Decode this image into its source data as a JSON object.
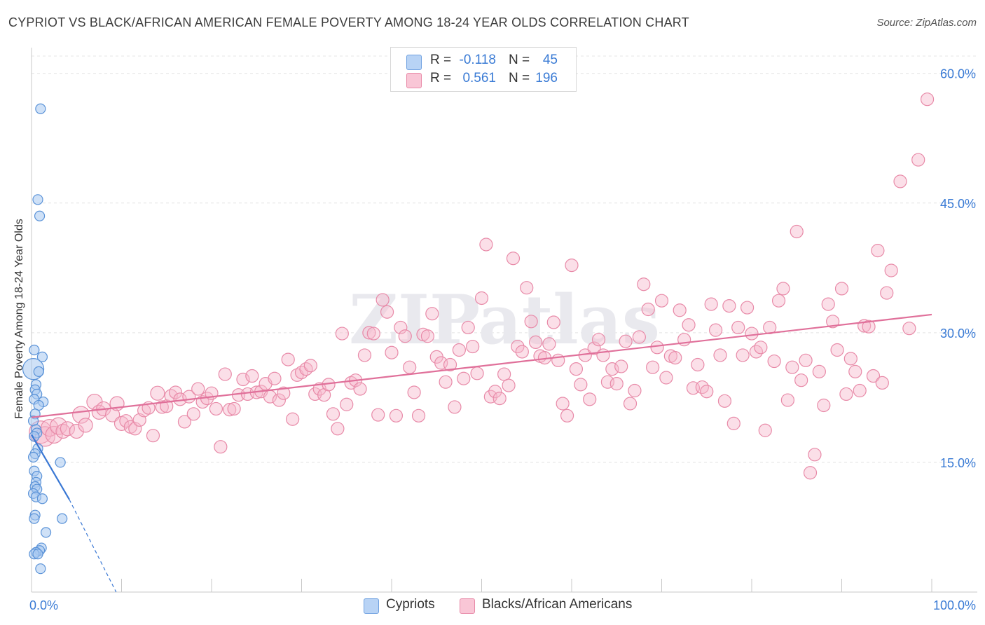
{
  "header": {
    "title": "CYPRIOT VS BLACK/AFRICAN AMERICAN FEMALE POVERTY AMONG 18-24 YEAR OLDS CORRELATION CHART",
    "source": "Source: ZipAtlas.com"
  },
  "legend_top": {
    "rows": [
      {
        "r_label": "R =",
        "r_value": "-0.118",
        "n_label": "N =",
        "n_value": "45"
      },
      {
        "r_label": "R =",
        "r_value": "0.561",
        "n_label": "N =",
        "n_value": "196"
      }
    ]
  },
  "legend_bottom": {
    "items": [
      {
        "label": "Cypriots"
      },
      {
        "label": "Blacks/African Americans"
      }
    ]
  },
  "watermark": "ZIPatlas",
  "colors": {
    "blue_fill": "#a8c8f0",
    "blue_stroke": "#5b93d8",
    "blue_line": "#3a78d4",
    "pink_fill": "#f7b8cc",
    "pink_stroke": "#e88aa8",
    "pink_line": "#e0709a",
    "grid": "#e4e4e4",
    "tick_label": "#3a7bd5"
  },
  "chart_data": {
    "type": "scatter",
    "title": "CYPRIOT VS BLACK/AFRICAN AMERICAN FEMALE POVERTY AMONG 18-24 YEAR OLDS CORRELATION CHART",
    "xlabel": "",
    "ylabel": "Female Poverty Among 18-24 Year Olds",
    "xlim": [
      0,
      100
    ],
    "ylim": [
      0,
      62
    ],
    "x_tick_labels": [
      "0.0%",
      "100.0%"
    ],
    "y_ticks": [
      15,
      30,
      45,
      60
    ],
    "y_tick_labels": [
      "15.0%",
      "30.0%",
      "45.0%",
      "60.0%"
    ],
    "grid": true,
    "series": [
      {
        "name": "Cypriots",
        "r": -0.118,
        "n": 45,
        "trend": {
          "x0": 0,
          "y0": 18.2,
          "x1": 4.2,
          "y1": 10.7
        },
        "trend_dashed": {
          "x0": 4.2,
          "y0": 10.7,
          "x1": 9.4,
          "y1": 0
        },
        "points": [
          [
            1.0,
            55.9,
            7
          ],
          [
            0.7,
            45.4,
            7
          ],
          [
            0.9,
            43.5,
            7
          ],
          [
            0.3,
            28.0,
            7
          ],
          [
            1.2,
            27.2,
            7
          ],
          [
            0.2,
            25.8,
            15
          ],
          [
            0.8,
            25.5,
            7
          ],
          [
            0.5,
            24.0,
            7
          ],
          [
            0.4,
            23.4,
            7
          ],
          [
            0.6,
            22.9,
            7
          ],
          [
            0.3,
            22.3,
            7
          ],
          [
            1.3,
            22.0,
            7
          ],
          [
            0.8,
            21.6,
            7
          ],
          [
            0.4,
            20.6,
            7
          ],
          [
            0.2,
            19.8,
            7
          ],
          [
            0.5,
            18.8,
            7
          ],
          [
            0.6,
            18.4,
            7
          ],
          [
            0.3,
            18.0,
            7
          ],
          [
            0.7,
            16.6,
            7
          ],
          [
            0.4,
            16.0,
            7
          ],
          [
            0.2,
            15.6,
            7
          ],
          [
            3.2,
            15.0,
            7
          ],
          [
            0.3,
            14.0,
            7
          ],
          [
            0.6,
            13.4,
            7
          ],
          [
            0.5,
            12.7,
            7
          ],
          [
            0.4,
            12.2,
            7
          ],
          [
            0.6,
            11.9,
            7
          ],
          [
            0.2,
            11.4,
            7
          ],
          [
            0.5,
            11.0,
            7
          ],
          [
            1.2,
            10.8,
            7
          ],
          [
            0.4,
            8.9,
            7
          ],
          [
            0.3,
            8.5,
            7
          ],
          [
            3.4,
            8.5,
            7
          ],
          [
            1.6,
            6.9,
            7
          ],
          [
            1.1,
            5.1,
            7
          ],
          [
            0.9,
            4.8,
            7
          ],
          [
            0.5,
            4.6,
            7
          ],
          [
            0.3,
            4.4,
            7
          ],
          [
            0.7,
            4.4,
            7
          ],
          [
            1.0,
            2.7,
            7
          ]
        ]
      },
      {
        "name": "Blacks/African Americans",
        "r": 0.561,
        "n": 196,
        "trend": {
          "x0": 0,
          "y0": 20.2,
          "x1": 100,
          "y1": 32.1
        },
        "points": [
          [
            1.0,
            18.5,
            16
          ],
          [
            1.5,
            18.0,
            14
          ],
          [
            2.0,
            19.0,
            12
          ],
          [
            2.5,
            18.2,
            12
          ],
          [
            3.0,
            19.2,
            12
          ],
          [
            3.5,
            18.6,
            10
          ],
          [
            4.0,
            18.9,
            10
          ],
          [
            5.0,
            18.6,
            10
          ],
          [
            5.5,
            20.5,
            12
          ],
          [
            6.0,
            19.3,
            10
          ],
          [
            7.0,
            22.0,
            11
          ],
          [
            7.5,
            20.8,
            10
          ],
          [
            8.0,
            21.2,
            10
          ],
          [
            9.0,
            20.5,
            10
          ],
          [
            9.5,
            21.8,
            10
          ],
          [
            10.0,
            19.5,
            10
          ],
          [
            10.5,
            19.8,
            9
          ],
          [
            11.0,
            19.1,
            9
          ],
          [
            11.5,
            18.9,
            9
          ],
          [
            12.0,
            19.9,
            9
          ],
          [
            12.5,
            21.0,
            9
          ],
          [
            13.0,
            21.3,
            9
          ],
          [
            13.5,
            18.1,
            9
          ],
          [
            14.0,
            23.0,
            10
          ],
          [
            14.5,
            21.4,
            9
          ],
          [
            15.0,
            21.5,
            9
          ],
          [
            15.5,
            22.7,
            9
          ],
          [
            16.0,
            23.1,
            9
          ],
          [
            16.5,
            22.3,
            9
          ],
          [
            17.0,
            19.7,
            9
          ],
          [
            17.5,
            22.6,
            9
          ],
          [
            18.0,
            20.6,
            9
          ],
          [
            18.5,
            23.5,
            9
          ],
          [
            19.0,
            22.0,
            9
          ],
          [
            19.5,
            22.4,
            9
          ],
          [
            20.0,
            23.0,
            9
          ],
          [
            20.5,
            21.2,
            9
          ],
          [
            21.0,
            16.8,
            9
          ],
          [
            21.5,
            25.2,
            9
          ],
          [
            22.0,
            21.1,
            9
          ],
          [
            22.5,
            21.2,
            9
          ],
          [
            23.0,
            22.8,
            9
          ],
          [
            23.5,
            24.6,
            9
          ],
          [
            24.0,
            22.9,
            9
          ],
          [
            24.5,
            25.0,
            9
          ],
          [
            25.0,
            23.1,
            9
          ],
          [
            25.5,
            23.2,
            9
          ],
          [
            26.0,
            24.1,
            9
          ],
          [
            26.5,
            22.6,
            9
          ],
          [
            27.0,
            24.7,
            9
          ],
          [
            27.5,
            22.2,
            9
          ],
          [
            28.0,
            23.0,
            9
          ],
          [
            28.5,
            26.9,
            9
          ],
          [
            29.0,
            20.0,
            9
          ],
          [
            29.5,
            25.1,
            9
          ],
          [
            30.0,
            25.4,
            9
          ],
          [
            30.5,
            25.8,
            9
          ],
          [
            31.0,
            26.2,
            9
          ],
          [
            31.5,
            22.9,
            9
          ],
          [
            32.0,
            23.5,
            9
          ],
          [
            32.5,
            22.8,
            9
          ],
          [
            33.0,
            24.0,
            9
          ],
          [
            33.5,
            20.6,
            9
          ],
          [
            34.0,
            18.9,
            9
          ],
          [
            34.5,
            29.9,
            9
          ],
          [
            35.0,
            21.7,
            9
          ],
          [
            35.5,
            24.2,
            9
          ],
          [
            36.0,
            24.5,
            9
          ],
          [
            36.5,
            23.5,
            9
          ],
          [
            37.0,
            27.4,
            9
          ],
          [
            37.5,
            30.0,
            9
          ],
          [
            38.0,
            29.9,
            9
          ],
          [
            38.5,
            20.5,
            9
          ],
          [
            39.0,
            33.8,
            9
          ],
          [
            39.5,
            32.4,
            9
          ],
          [
            40.0,
            27.7,
            9
          ],
          [
            40.5,
            20.4,
            9
          ],
          [
            41.0,
            30.6,
            9
          ],
          [
            41.5,
            29.6,
            9
          ],
          [
            42.0,
            26.0,
            9
          ],
          [
            42.5,
            23.1,
            9
          ],
          [
            43.0,
            20.4,
            9
          ],
          [
            43.5,
            29.8,
            9
          ],
          [
            44.0,
            29.6,
            9
          ],
          [
            44.5,
            32.2,
            9
          ],
          [
            45.0,
            27.2,
            9
          ],
          [
            45.5,
            26.5,
            9
          ],
          [
            46.0,
            24.3,
            9
          ],
          [
            46.5,
            26.3,
            9
          ],
          [
            47.0,
            21.4,
            9
          ],
          [
            47.5,
            28.0,
            9
          ],
          [
            48.0,
            24.7,
            9
          ],
          [
            48.5,
            30.6,
            9
          ],
          [
            49.0,
            28.4,
            9
          ],
          [
            49.5,
            25.3,
            9
          ],
          [
            50.0,
            34.0,
            9
          ],
          [
            50.5,
            40.2,
            9
          ],
          [
            51.0,
            22.6,
            9
          ],
          [
            51.5,
            23.2,
            9
          ],
          [
            52.0,
            22.4,
            9
          ],
          [
            52.5,
            25.2,
            9
          ],
          [
            53.0,
            23.9,
            9
          ],
          [
            53.5,
            38.6,
            9
          ],
          [
            54.0,
            28.4,
            9
          ],
          [
            54.5,
            27.8,
            9
          ],
          [
            55.0,
            35.2,
            9
          ],
          [
            55.5,
            31.3,
            9
          ],
          [
            56.0,
            28.9,
            9
          ],
          [
            56.5,
            27.3,
            9
          ],
          [
            57.0,
            27.1,
            9
          ],
          [
            57.5,
            28.7,
            9
          ],
          [
            58.0,
            31.2,
            9
          ],
          [
            58.5,
            26.8,
            9
          ],
          [
            59.0,
            21.8,
            9
          ],
          [
            59.5,
            20.4,
            9
          ],
          [
            60.0,
            37.8,
            9
          ],
          [
            60.5,
            25.8,
            9
          ],
          [
            61.0,
            24.0,
            9
          ],
          [
            61.5,
            27.4,
            9
          ],
          [
            62.0,
            22.3,
            9
          ],
          [
            62.5,
            28.2,
            9
          ],
          [
            63.0,
            29.2,
            9
          ],
          [
            63.5,
            27.4,
            9
          ],
          [
            64.0,
            24.3,
            9
          ],
          [
            64.5,
            25.8,
            9
          ],
          [
            65.0,
            24.1,
            9
          ],
          [
            65.5,
            26.1,
            9
          ],
          [
            66.0,
            29.0,
            9
          ],
          [
            66.5,
            21.8,
            9
          ],
          [
            67.0,
            23.3,
            9
          ],
          [
            67.5,
            29.5,
            9
          ],
          [
            68.0,
            35.6,
            9
          ],
          [
            68.5,
            32.7,
            9
          ],
          [
            69.0,
            26.0,
            9
          ],
          [
            69.5,
            28.3,
            9
          ],
          [
            70.0,
            33.7,
            9
          ],
          [
            70.5,
            24.8,
            9
          ],
          [
            71.0,
            27.3,
            9
          ],
          [
            71.5,
            27.1,
            9
          ],
          [
            72.0,
            32.6,
            9
          ],
          [
            72.5,
            29.2,
            9
          ],
          [
            73.0,
            30.9,
            9
          ],
          [
            73.5,
            23.6,
            9
          ],
          [
            74.0,
            26.3,
            9
          ],
          [
            74.5,
            23.7,
            9
          ],
          [
            75.0,
            23.2,
            9
          ],
          [
            75.5,
            33.3,
            9
          ],
          [
            76.0,
            30.3,
            9
          ],
          [
            76.5,
            27.4,
            9
          ],
          [
            77.0,
            22.1,
            9
          ],
          [
            77.5,
            33.1,
            9
          ],
          [
            78.0,
            19.5,
            9
          ],
          [
            78.5,
            30.6,
            9
          ],
          [
            79.0,
            27.4,
            9
          ],
          [
            79.5,
            32.9,
            9
          ],
          [
            80.0,
            29.9,
            9
          ],
          [
            80.5,
            27.8,
            9
          ],
          [
            81.0,
            28.3,
            9
          ],
          [
            81.5,
            18.7,
            9
          ],
          [
            82.0,
            30.6,
            9
          ],
          [
            82.5,
            26.7,
            9
          ],
          [
            83.0,
            33.7,
            9
          ],
          [
            83.5,
            35.1,
            9
          ],
          [
            84.0,
            22.2,
            9
          ],
          [
            84.5,
            26.0,
            9
          ],
          [
            85.0,
            41.7,
            9
          ],
          [
            85.5,
            24.5,
            9
          ],
          [
            86.0,
            26.8,
            9
          ],
          [
            86.5,
            13.8,
            9
          ],
          [
            87.0,
            15.9,
            9
          ],
          [
            87.5,
            25.5,
            9
          ],
          [
            88.0,
            21.6,
            9
          ],
          [
            88.5,
            33.3,
            9
          ],
          [
            89.0,
            31.3,
            9
          ],
          [
            89.5,
            28.0,
            9
          ],
          [
            90.0,
            35.1,
            9
          ],
          [
            90.5,
            22.9,
            9
          ],
          [
            91.0,
            27.0,
            9
          ],
          [
            91.5,
            25.5,
            9
          ],
          [
            92.0,
            23.3,
            9
          ],
          [
            92.5,
            30.8,
            9
          ],
          [
            93.0,
            30.7,
            9
          ],
          [
            93.5,
            25.0,
            9
          ],
          [
            94.0,
            39.5,
            9
          ],
          [
            94.5,
            24.2,
            9
          ],
          [
            95.0,
            34.6,
            9
          ],
          [
            95.5,
            37.2,
            9
          ],
          [
            96.5,
            47.5,
            9
          ],
          [
            97.5,
            30.5,
            9
          ],
          [
            98.5,
            50.0,
            9
          ],
          [
            99.5,
            57.0,
            9
          ]
        ]
      }
    ]
  }
}
